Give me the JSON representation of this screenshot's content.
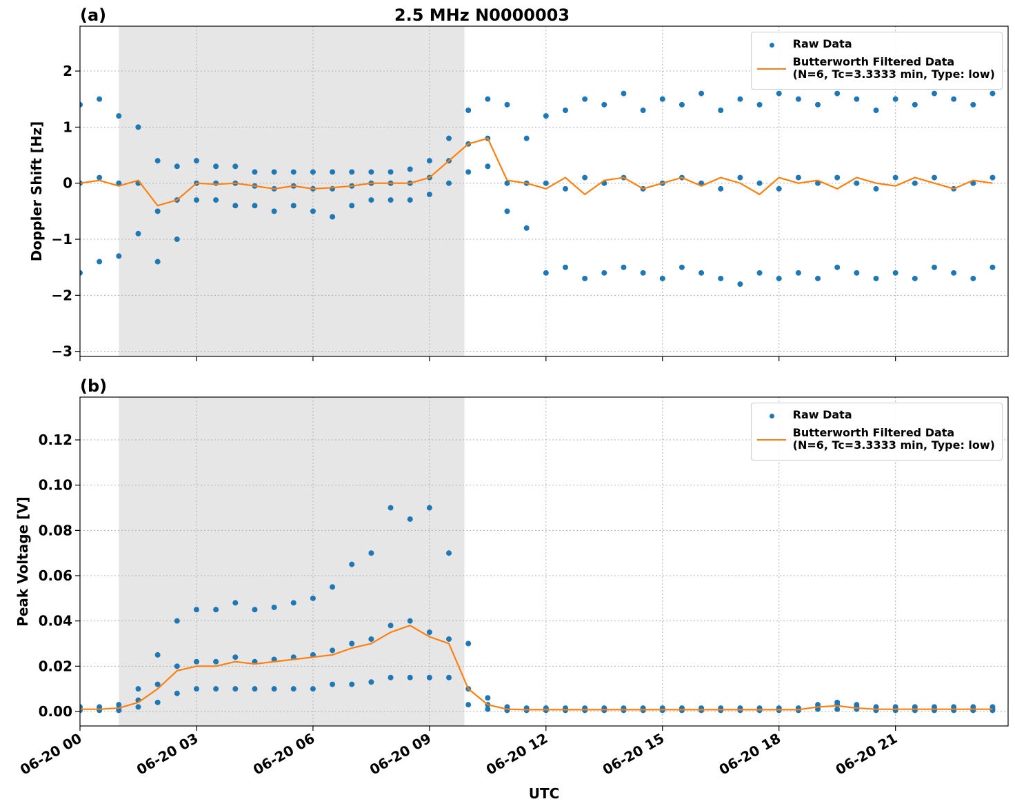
{
  "chart_data": [
    {
      "type": "scatter-line",
      "panel_label": "(a)",
      "title": "2.5 MHz N0000003",
      "y_label": "Doppler Shift [Hz]",
      "xlim": [
        0,
        23.9
      ],
      "xticks": [
        0,
        3,
        6,
        9,
        12,
        15,
        18,
        21
      ],
      "ylim": [
        -3.09,
        2.8
      ],
      "yticks": [
        {
          "value": -3,
          "label": "−3"
        },
        {
          "value": -2,
          "label": "−2"
        },
        {
          "value": -1,
          "label": "−1"
        },
        0,
        1,
        2
      ],
      "grid": true,
      "legend": "upper-right",
      "shaded_span": [
        1,
        9.9
      ],
      "shade_color": "#e6e6e6",
      "series": [
        {
          "name": "Raw Data",
          "kind": "scatter",
          "color": "#1f77b4",
          "x": [
            0,
            0,
            0,
            0.5,
            0.5,
            0.5,
            1,
            1,
            1,
            1.5,
            1.5,
            1.5,
            2,
            2,
            2,
            2.5,
            2.5,
            2.5,
            3,
            3,
            3,
            3.5,
            3.5,
            3.5,
            4,
            4,
            4,
            4.5,
            4.5,
            4.5,
            5,
            5,
            5,
            5.5,
            5.5,
            5.5,
            6,
            6,
            6,
            6.5,
            6.5,
            6.5,
            7,
            7,
            7,
            7.5,
            7.5,
            7.5,
            8,
            8,
            8,
            8.5,
            8.5,
            8.5,
            9,
            9,
            9,
            9.5,
            9.5,
            9.5,
            10,
            10,
            10,
            10.5,
            10.5,
            10.5,
            11,
            11,
            11,
            11.5,
            11.5,
            11.5,
            12,
            12,
            12,
            12.5,
            12.5,
            12.5,
            13,
            13,
            13,
            13.5,
            13.5,
            13.5,
            14,
            14,
            14,
            14.5,
            14.5,
            14.5,
            15,
            15,
            15,
            15.5,
            15.5,
            15.5,
            16,
            16,
            16,
            16.5,
            16.5,
            16.5,
            17,
            17,
            17,
            17.5,
            17.5,
            17.5,
            18,
            18,
            18,
            18.5,
            18.5,
            18.5,
            19,
            19,
            19,
            19.5,
            19.5,
            19.5,
            20,
            20,
            20,
            20.5,
            20.5,
            20.5,
            21,
            21,
            21,
            21.5,
            21.5,
            21.5,
            22,
            22,
            22,
            22.5,
            22.5,
            22.5,
            23,
            23,
            23,
            23.5,
            23.5,
            23.5
          ],
          "values": [
            1.4,
            0,
            -1.6,
            1.5,
            0.1,
            -1.4,
            1.2,
            0,
            -1.3,
            1.0,
            0,
            -0.9,
            0.4,
            -0.5,
            -1.4,
            0.3,
            -0.3,
            -1.0,
            0.4,
            0,
            -0.3,
            0.3,
            0,
            -0.3,
            0.3,
            0,
            -0.4,
            0.2,
            -0.05,
            -0.4,
            0.2,
            -0.1,
            -0.5,
            0.2,
            -0.05,
            -0.4,
            0.2,
            -0.1,
            -0.5,
            0.2,
            -0.1,
            -0.6,
            0.2,
            -0.05,
            -0.4,
            0.2,
            0,
            -0.3,
            0.2,
            0,
            -0.3,
            0.25,
            0,
            -0.3,
            0.4,
            0.1,
            -0.2,
            0.8,
            0.4,
            0,
            1.3,
            0.7,
            0.2,
            1.5,
            0.8,
            0.3,
            1.4,
            0,
            -0.5,
            0.8,
            0,
            -0.8,
            1.2,
            0,
            -1.6,
            1.3,
            -0.1,
            -1.5,
            1.5,
            0.1,
            -1.7,
            1.4,
            0,
            -1.6,
            1.6,
            0.1,
            -1.5,
            1.3,
            -0.1,
            -1.6,
            1.5,
            0,
            -1.7,
            1.4,
            0.1,
            -1.5,
            1.6,
            0,
            -1.6,
            1.3,
            -0.1,
            -1.7,
            1.5,
            0.1,
            -1.8,
            1.4,
            0,
            -1.6,
            1.6,
            -0.1,
            -1.7,
            1.5,
            0.1,
            -1.6,
            1.4,
            0,
            -1.7,
            1.6,
            0.1,
            -1.5,
            1.5,
            0,
            -1.6,
            1.3,
            -0.1,
            -1.7,
            1.5,
            0.1,
            -1.6,
            1.4,
            0,
            -1.7,
            1.6,
            0.1,
            -1.5,
            1.5,
            -0.1,
            -1.6,
            1.4,
            0,
            -1.7,
            1.6,
            0.1,
            -1.5
          ]
        },
        {
          "name": "Butterworth Filtered Data\n(N=6, Tc=3.3333 min, Type: low)",
          "kind": "line",
          "color": "#ff7f0e",
          "x": [
            0,
            0.5,
            1,
            1.5,
            2,
            2.5,
            3,
            3.5,
            4,
            4.5,
            5,
            5.5,
            6,
            6.5,
            7,
            7.5,
            8,
            8.5,
            9,
            9.5,
            10,
            10.5,
            11,
            11.5,
            12,
            12.5,
            13,
            13.5,
            14,
            14.5,
            15,
            15.5,
            16,
            16.5,
            17,
            17.5,
            18,
            18.5,
            19,
            19.5,
            20,
            20.5,
            21,
            21.5,
            22,
            22.5,
            23,
            23.5
          ],
          "values": [
            0,
            0.05,
            -0.05,
            0.05,
            -0.4,
            -0.3,
            0,
            -0.02,
            0,
            -0.05,
            -0.1,
            -0.05,
            -0.1,
            -0.08,
            -0.05,
            0,
            0,
            0,
            0.1,
            0.4,
            0.7,
            0.8,
            0.05,
            0,
            -0.1,
            0.1,
            -0.2,
            0.05,
            0.1,
            -0.1,
            0,
            0.1,
            -0.05,
            0.1,
            0,
            -0.2,
            0.1,
            0,
            0.05,
            -0.1,
            0.1,
            0,
            -0.05,
            0.1,
            0,
            -0.1,
            0.05,
            0
          ]
        }
      ]
    },
    {
      "type": "scatter-line",
      "panel_label": "(b)",
      "y_label": "Peak Voltage [V]",
      "x_label": "UTC",
      "xlim": [
        0,
        23.9
      ],
      "xticks": [
        {
          "value": 0,
          "label": "06-20 00"
        },
        {
          "value": 3,
          "label": "06-20 03"
        },
        {
          "value": 6,
          "label": "06-20 06"
        },
        {
          "value": 9,
          "label": "06-20 09"
        },
        {
          "value": 12,
          "label": "06-20 12"
        },
        {
          "value": 15,
          "label": "06-20 15"
        },
        {
          "value": 18,
          "label": "06-20 18"
        },
        {
          "value": 21,
          "label": "06-20 21"
        }
      ],
      "ylim": [
        -0.0064,
        0.1389
      ],
      "yticks": [
        {
          "value": 0,
          "label": "0.00"
        },
        0.02,
        0.04,
        0.06,
        0.08,
        {
          "value": 0.1,
          "label": "0.10"
        },
        0.12
      ],
      "grid": true,
      "legend": "upper-right",
      "shaded_span": [
        1,
        9.9
      ],
      "shade_color": "#e6e6e6",
      "series": [
        {
          "name": "Raw Data",
          "kind": "scatter",
          "color": "#1f77b4",
          "x": [
            0,
            0,
            0,
            0.5,
            0.5,
            0.5,
            1,
            1,
            1,
            1.5,
            1.5,
            1.5,
            2,
            2,
            2,
            2.5,
            2.5,
            2.5,
            3,
            3,
            3,
            3.5,
            3.5,
            3.5,
            4,
            4,
            4,
            4.5,
            4.5,
            4.5,
            5,
            5,
            5,
            5.5,
            5.5,
            5.5,
            6,
            6,
            6,
            6.5,
            6.5,
            6.5,
            7,
            7,
            7,
            7.5,
            7.5,
            7.5,
            8,
            8,
            8,
            8.5,
            8.5,
            8.5,
            9,
            9,
            9,
            9.5,
            9.5,
            9.5,
            10,
            10,
            10,
            10.5,
            10.5,
            10.5,
            11,
            11,
            11,
            11.5,
            11.5,
            11.5,
            12,
            12,
            12,
            12.5,
            12.5,
            12.5,
            13,
            13,
            13,
            13.5,
            13.5,
            13.5,
            14,
            14,
            14,
            14.5,
            14.5,
            14.5,
            15,
            15,
            15,
            15.5,
            15.5,
            15.5,
            16,
            16,
            16,
            16.5,
            16.5,
            16.5,
            17,
            17,
            17,
            17.5,
            17.5,
            17.5,
            18,
            18,
            18,
            18.5,
            18.5,
            18.5,
            19,
            19,
            19,
            19.5,
            19.5,
            19.5,
            20,
            20,
            20,
            20.5,
            20.5,
            20.5,
            21,
            21,
            21,
            21.5,
            21.5,
            21.5,
            22,
            22,
            22,
            22.5,
            22.5,
            22.5,
            23,
            23,
            23,
            23.5,
            23.5,
            23.5
          ],
          "values": [
            0.002,
            0.001,
            0.0005,
            0.002,
            0.001,
            0.0005,
            0.003,
            0.0015,
            0.0005,
            0.01,
            0.005,
            0.002,
            0.025,
            0.012,
            0.004,
            0.04,
            0.02,
            0.008,
            0.045,
            0.022,
            0.01,
            0.045,
            0.022,
            0.01,
            0.048,
            0.024,
            0.01,
            0.045,
            0.022,
            0.01,
            0.046,
            0.023,
            0.01,
            0.048,
            0.024,
            0.01,
            0.05,
            0.025,
            0.01,
            0.055,
            0.027,
            0.012,
            0.065,
            0.03,
            0.012,
            0.07,
            0.032,
            0.013,
            0.09,
            0.038,
            0.015,
            0.085,
            0.04,
            0.015,
            0.09,
            0.035,
            0.015,
            0.07,
            0.032,
            0.015,
            0.03,
            0.01,
            0.003,
            0.006,
            0.003,
            0.001,
            0.002,
            0.001,
            0.0005,
            0.0015,
            0.001,
            0.0005,
            0.0015,
            0.001,
            0.0005,
            0.0015,
            0.001,
            0.0005,
            0.0015,
            0.001,
            0.0005,
            0.0015,
            0.001,
            0.0005,
            0.0015,
            0.001,
            0.0005,
            0.0015,
            0.001,
            0.0005,
            0.0015,
            0.001,
            0.0005,
            0.0015,
            0.001,
            0.0005,
            0.0015,
            0.001,
            0.0005,
            0.0015,
            0.001,
            0.0005,
            0.0015,
            0.001,
            0.0005,
            0.0015,
            0.001,
            0.0005,
            0.0015,
            0.001,
            0.0005,
            0.0015,
            0.001,
            0.0005,
            0.003,
            0.002,
            0.001,
            0.004,
            0.003,
            0.001,
            0.003,
            0.002,
            0.001,
            0.002,
            0.001,
            0.0005,
            0.002,
            0.001,
            0.0005,
            0.002,
            0.001,
            0.0005,
            0.002,
            0.001,
            0.0005,
            0.002,
            0.001,
            0.0005,
            0.002,
            0.001,
            0.0005,
            0.002,
            0.001,
            0.0005
          ]
        },
        {
          "name": "Butterworth Filtered Data\n(N=6, Tc=3.3333 min, Type: low)",
          "kind": "line",
          "color": "#ff7f0e",
          "x": [
            0,
            0.5,
            1,
            1.5,
            2,
            2.5,
            3,
            3.5,
            4,
            4.5,
            5,
            5.5,
            6,
            6.5,
            7,
            7.5,
            8,
            8.5,
            9,
            9.5,
            10,
            10.5,
            11,
            11.5,
            12,
            12.5,
            13,
            13.5,
            14,
            14.5,
            15,
            15.5,
            16,
            16.5,
            17,
            17.5,
            18,
            18.5,
            19,
            19.5,
            20,
            20.5,
            21,
            21.5,
            22,
            22.5,
            23,
            23.5
          ],
          "values": [
            0.001,
            0.001,
            0.0015,
            0.004,
            0.01,
            0.018,
            0.02,
            0.02,
            0.022,
            0.021,
            0.022,
            0.023,
            0.024,
            0.025,
            0.028,
            0.03,
            0.035,
            0.038,
            0.033,
            0.03,
            0.01,
            0.003,
            0.001,
            0.0008,
            0.0008,
            0.0008,
            0.0008,
            0.0008,
            0.0008,
            0.0008,
            0.0008,
            0.0008,
            0.0008,
            0.0008,
            0.0008,
            0.0008,
            0.0008,
            0.0008,
            0.002,
            0.0025,
            0.0015,
            0.001,
            0.001,
            0.001,
            0.001,
            0.001,
            0.001,
            0.001
          ]
        }
      ]
    }
  ]
}
